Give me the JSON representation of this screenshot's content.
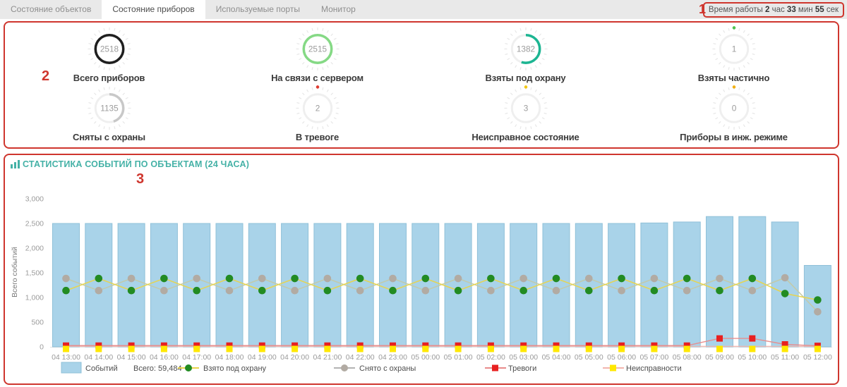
{
  "tabs": [
    {
      "label": "Состояние объектов",
      "active": false
    },
    {
      "label": "Состояние приборов",
      "active": true
    },
    {
      "label": "Используемые порты",
      "active": false
    },
    {
      "label": "Монитор",
      "active": false
    }
  ],
  "uptime": {
    "label": "Время работы",
    "hours": "2",
    "hours_unit": "час",
    "minutes": "33",
    "minutes_unit": "мин",
    "seconds": "55",
    "seconds_unit": "сек"
  },
  "annotations": {
    "n1": "1",
    "n2": "2",
    "n3": "3",
    "color": "#cf362e"
  },
  "gauges": [
    {
      "value": "2518",
      "label": "Всего приборов",
      "ring_color": "#1f1f1f",
      "fraction": 1,
      "dot_color": null
    },
    {
      "value": "2515",
      "label": "На связи с сервером",
      "ring_color": "#85d985",
      "fraction": 1,
      "dot_color": null
    },
    {
      "value": "1382",
      "label": "Взяты под охрану",
      "ring_color": "#1db592",
      "fraction": 0.55,
      "dot_color": null
    },
    {
      "value": "1",
      "label": "Взяты частично",
      "ring_color": "#f0f0f0",
      "fraction": 0,
      "dot_color": "#4fc24f"
    },
    {
      "value": "1135",
      "label": "Сняты с охраны",
      "ring_color": "#c8c8c8",
      "fraction": 0.45,
      "dot_color": null
    },
    {
      "value": "2",
      "label": "В тревоге",
      "ring_color": "#f0f0f0",
      "fraction": 0,
      "dot_color": "#e03c31"
    },
    {
      "value": "3",
      "label": "Неисправное состояние",
      "ring_color": "#f0f0f0",
      "fraction": 0,
      "dot_color": "#f2c714"
    },
    {
      "value": "0",
      "label": "Приборы в инж. режиме",
      "ring_color": "#f0f0f0",
      "fraction": 0,
      "dot_color": "#f2b014"
    }
  ],
  "chart_data": {
    "type": "bar",
    "title": "СТАТИСТИКА СОБЫТИЙ ПО ОБЪЕКТАМ (24 ЧАСА)",
    "ylabel": "Всего событий",
    "ylim": [
      0,
      3000
    ],
    "yticks": [
      "0",
      "500",
      "1,000",
      "1,500",
      "2,000",
      "2,500",
      "3,000"
    ],
    "grid": false,
    "legend_position": "bottom",
    "categories": [
      "04 13:00",
      "04 14:00",
      "04 15:00",
      "04 16:00",
      "04 17:00",
      "04 18:00",
      "04 19:00",
      "04 20:00",
      "04 21:00",
      "04 22:00",
      "04 23:00",
      "05 00:00",
      "05 01:00",
      "05 02:00",
      "05 03:00",
      "05 04:00",
      "05 05:00",
      "05 06:00",
      "05 07:00",
      "05 08:00",
      "05 09:00",
      "05 10:00",
      "05 11:00",
      "05 12:00"
    ],
    "series": [
      {
        "name": "Событий",
        "type": "bar",
        "total_label": "Всего: 59,484",
        "color": "#a9d3e9",
        "border_color": "#8fc0d8",
        "values": [
          2500,
          2500,
          2500,
          2500,
          2500,
          2500,
          2500,
          2500,
          2500,
          2500,
          2500,
          2500,
          2500,
          2500,
          2500,
          2500,
          2500,
          2500,
          2510,
          2530,
          2640,
          2640,
          2530,
          1650
        ]
      },
      {
        "name": "Взято под охрану",
        "type": "line",
        "marker": "circle",
        "line_color": "#e8d44a",
        "marker_color": "#228b22",
        "values": [
          1140,
          1385,
          1140,
          1385,
          1140,
          1385,
          1140,
          1385,
          1140,
          1385,
          1140,
          1385,
          1140,
          1385,
          1140,
          1385,
          1140,
          1385,
          1140,
          1385,
          1140,
          1385,
          1080,
          950
        ]
      },
      {
        "name": "Снято с охраны",
        "type": "line",
        "marker": "circle",
        "line_color": "#c3c9a6",
        "marker_color": "#b2aba3",
        "values": [
          1385,
          1140,
          1385,
          1140,
          1385,
          1140,
          1385,
          1140,
          1385,
          1140,
          1385,
          1140,
          1385,
          1140,
          1385,
          1140,
          1385,
          1140,
          1385,
          1140,
          1385,
          1140,
          1400,
          710
        ]
      },
      {
        "name": "Тревоги",
        "type": "line",
        "marker": "square",
        "line_color": "#e88b8b",
        "marker_color": "#e82020",
        "values": [
          25,
          25,
          25,
          25,
          25,
          25,
          25,
          25,
          25,
          25,
          25,
          25,
          25,
          25,
          25,
          25,
          25,
          25,
          25,
          25,
          170,
          170,
          50,
          20
        ]
      },
      {
        "name": "Неисправности",
        "type": "line",
        "marker": "square",
        "line_color": "#f2b5ae",
        "marker_color": "#ffe800",
        "values": [
          10,
          10,
          10,
          10,
          10,
          10,
          10,
          10,
          10,
          10,
          10,
          10,
          10,
          10,
          10,
          10,
          10,
          10,
          10,
          10,
          10,
          10,
          10,
          10
        ]
      }
    ]
  }
}
